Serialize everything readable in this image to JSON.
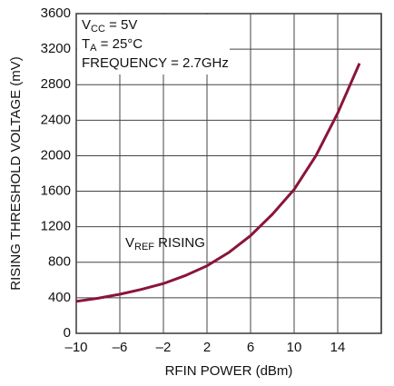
{
  "chart_data": {
    "type": "line",
    "xlabel": "RFIN POWER (dBm)",
    "ylabel": "RISING THRESHOLD VOLTAGE (mV)",
    "annotations": [
      {
        "main": "V",
        "sub": "CC",
        "rest": " = 5V"
      },
      {
        "main": "T",
        "sub": "A",
        "rest": " = 25°C"
      },
      {
        "main": "FREQUENCY = 2.7GHz"
      },
      {
        "main": "V",
        "sub": "REF",
        "rest": " RISING"
      }
    ],
    "xlim": [
      -10,
      18
    ],
    "xticks": [
      {
        "value": -10,
        "label": "–10"
      },
      {
        "value": -6,
        "label": "–6"
      },
      {
        "value": -2,
        "label": "–2"
      },
      2,
      6,
      10,
      14
    ],
    "ylim": [
      0,
      3600
    ],
    "yticks": [
      0,
      400,
      800,
      1200,
      1600,
      2000,
      2400,
      2800,
      3200,
      3600
    ],
    "grid": true,
    "series": [
      {
        "name": "VREF RISING",
        "color": "#8a1538",
        "x": [
          -10,
          -8,
          -6,
          -4,
          -2,
          0,
          2,
          4,
          6,
          8,
          10,
          12,
          14,
          16
        ],
        "values": [
          360,
          395,
          440,
          495,
          560,
          650,
          760,
          910,
          1100,
          1340,
          1620,
          2000,
          2480,
          3040
        ]
      }
    ]
  }
}
